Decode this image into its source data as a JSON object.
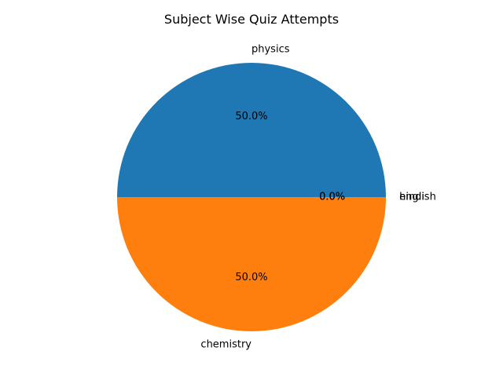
{
  "chart_data": {
    "type": "pie",
    "title": "Subject Wise Quiz Attempts",
    "labels": [
      "physics",
      "chemistry",
      "hindi",
      "english"
    ],
    "values": [
      1,
      1,
      0,
      0
    ],
    "percent_labels": [
      "50.0%",
      "50.0%",
      "0.0%",
      "0.0%"
    ],
    "colors": [
      "#1f77b4",
      "#ff7f0e",
      "#2ca02c",
      "#d62728"
    ],
    "start_angle": 0,
    "direction": "counterclockwise",
    "legend": "none"
  }
}
